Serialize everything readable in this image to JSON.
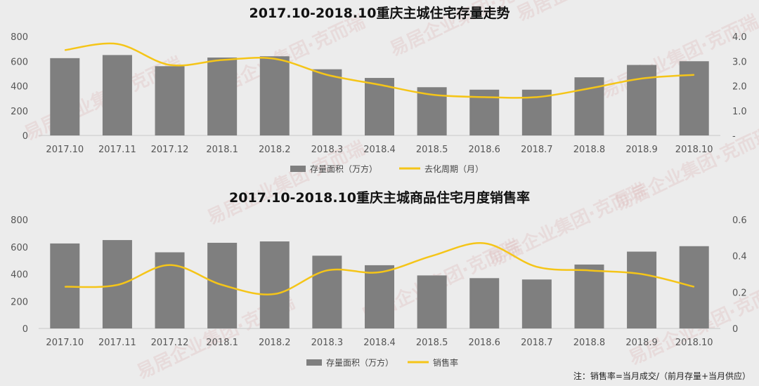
{
  "chart_data": [
    {
      "type": "bar",
      "title": "2017.10-2018.10重庆主城住宅存量走势",
      "categories": [
        "2017.10",
        "2017.11",
        "2017.12",
        "2018.1",
        "2018.2",
        "2018.3",
        "2018.4",
        "2018.5",
        "2018.6",
        "2018.7",
        "2018.8",
        "2018.9",
        "2018.10"
      ],
      "series": [
        {
          "name": "存量面积（万方）",
          "kind": "bar",
          "axis": "left",
          "color": "#7f7f7f",
          "values": [
            625,
            650,
            560,
            630,
            640,
            535,
            465,
            390,
            370,
            370,
            470,
            570,
            600
          ]
        },
        {
          "name": "去化周期（月）",
          "kind": "line",
          "axis": "right",
          "color": "#f5c518",
          "values": [
            3.45,
            3.7,
            2.85,
            3.05,
            3.1,
            2.45,
            2.05,
            1.65,
            1.55,
            1.55,
            1.9,
            2.3,
            2.45
          ]
        }
      ],
      "ylim_left": [
        0,
        800
      ],
      "yticks_left": [
        "0",
        "200",
        "400",
        "600",
        "800"
      ],
      "ylim_right": [
        0,
        4
      ],
      "yticks_right": [
        "-",
        "1.0",
        "2.0",
        "3.0",
        "4.0"
      ],
      "legend_position": "bottom"
    },
    {
      "type": "bar",
      "title": "2017.10-2018.10重庆主城商品住宅月度销售率",
      "categories": [
        "2017.10",
        "2017.11",
        "2017.12",
        "2018.1",
        "2018.2",
        "2018.3",
        "2018.4",
        "2018.5",
        "2018.6",
        "2018.7",
        "2018.8",
        "2018.9",
        "2018.10"
      ],
      "series": [
        {
          "name": "存量面积（万方）",
          "kind": "bar",
          "axis": "left",
          "color": "#7f7f7f",
          "values": [
            625,
            650,
            560,
            630,
            640,
            535,
            465,
            390,
            370,
            360,
            470,
            565,
            605
          ]
        },
        {
          "name": "销售率",
          "kind": "line",
          "axis": "right",
          "color": "#f5c518",
          "values": [
            0.23,
            0.24,
            0.35,
            0.24,
            0.19,
            0.32,
            0.31,
            0.4,
            0.47,
            0.34,
            0.32,
            0.3,
            0.23
          ]
        }
      ],
      "ylim_left": [
        0,
        800
      ],
      "yticks_left": [
        "0",
        "200",
        "400",
        "600",
        "800"
      ],
      "ylim_right": [
        0,
        0.6
      ],
      "yticks_right": [
        "0",
        "0.2",
        "0.4",
        "0.6"
      ],
      "legend_position": "bottom"
    }
  ],
  "footnote": "注：销售率=当月成交/（前月存量+当月供应）",
  "watermark": "易居企业集团·克而瑞"
}
